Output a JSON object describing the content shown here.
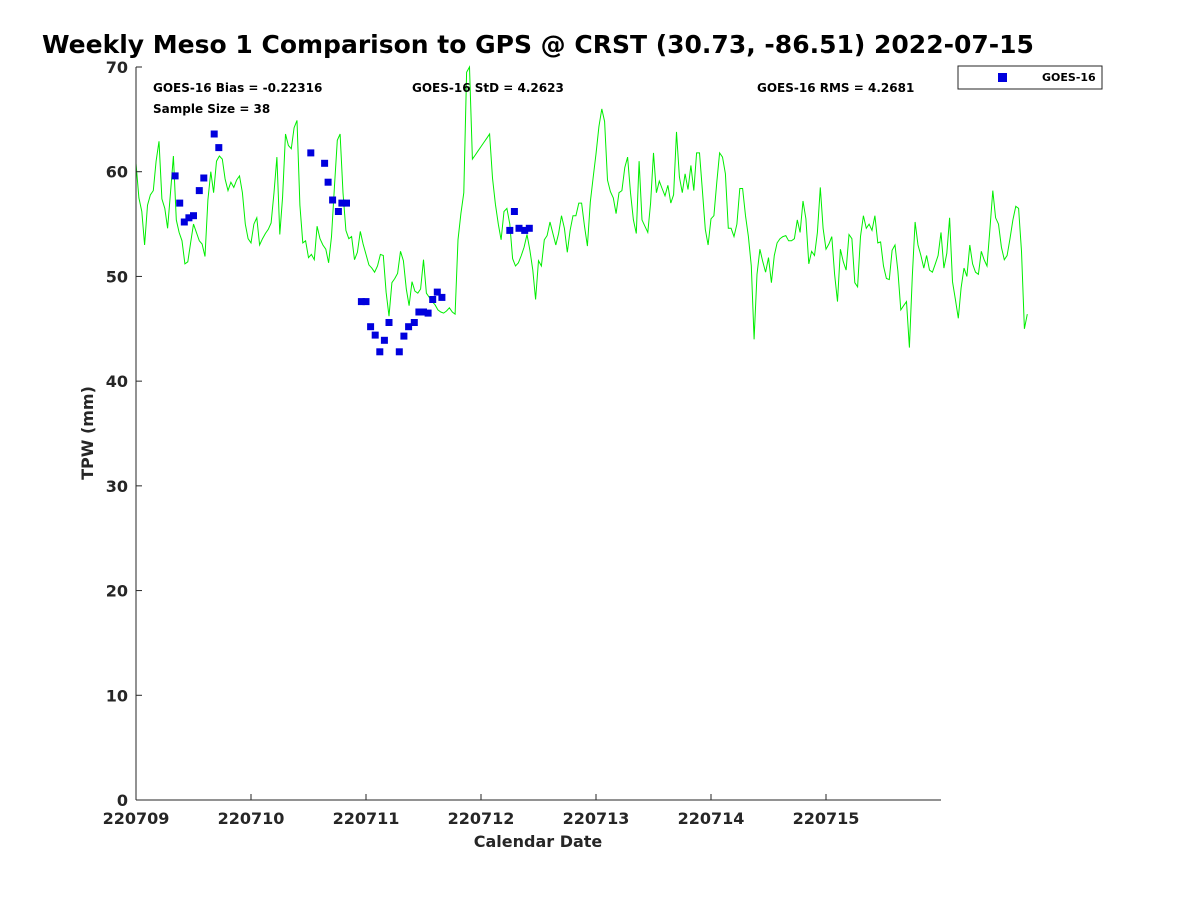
{
  "chart_data": {
    "type": "scatter",
    "title": "Weekly Meso 1 Comparison to GPS @ CRST (30.73, -86.51) 2022-07-15",
    "xlabel": "Calendar Date",
    "ylabel": "TPW (mm)",
    "xlim": [
      0,
      7
    ],
    "ylim": [
      0,
      70
    ],
    "x_ticks": [
      0,
      1,
      2,
      3,
      4,
      5,
      6
    ],
    "x_tick_labels": [
      "220709",
      "220710",
      "220711",
      "220712",
      "220713",
      "220714",
      "220715"
    ],
    "y_ticks": [
      0,
      10,
      20,
      30,
      40,
      50,
      60,
      70
    ],
    "y_tick_labels": [
      "0",
      "10",
      "20",
      "30",
      "40",
      "50",
      "60",
      "70"
    ],
    "grid": false,
    "legend_position": "outside-top-right",
    "stats": {
      "bias": "GOES-16 Bias = -0.22316",
      "std": "GOES-16 StD = 4.2623",
      "rms": "GOES-16 RMS = 4.2681",
      "sample": "Sample Size = 38"
    },
    "series": [
      {
        "name": "GOES-16",
        "kind": "scatter",
        "marker": "square",
        "color": "#0000dd",
        "points": [
          [
            0.34,
            59.6
          ],
          [
            0.38,
            57.0
          ],
          [
            0.42,
            55.2
          ],
          [
            0.46,
            55.6
          ],
          [
            0.5,
            55.8
          ],
          [
            0.55,
            58.2
          ],
          [
            0.59,
            59.4
          ],
          [
            0.68,
            63.6
          ],
          [
            0.72,
            62.3
          ],
          [
            1.52,
            61.8
          ],
          [
            1.64,
            60.8
          ],
          [
            1.67,
            59.0
          ],
          [
            1.71,
            57.3
          ],
          [
            1.76,
            56.2
          ],
          [
            1.79,
            57.0
          ],
          [
            1.83,
            57.0
          ],
          [
            1.96,
            47.6
          ],
          [
            2.0,
            47.6
          ],
          [
            2.04,
            45.2
          ],
          [
            2.08,
            44.4
          ],
          [
            2.12,
            42.8
          ],
          [
            2.16,
            43.9
          ],
          [
            2.2,
            45.6
          ],
          [
            2.29,
            42.8
          ],
          [
            2.33,
            44.3
          ],
          [
            2.37,
            45.2
          ],
          [
            2.42,
            45.6
          ],
          [
            2.46,
            46.6
          ],
          [
            2.5,
            46.6
          ],
          [
            2.54,
            46.5
          ],
          [
            2.58,
            47.8
          ],
          [
            2.62,
            48.5
          ],
          [
            2.66,
            48.0
          ],
          [
            3.25,
            54.4
          ],
          [
            3.29,
            56.2
          ],
          [
            3.33,
            54.6
          ],
          [
            3.38,
            54.4
          ],
          [
            3.42,
            54.6
          ]
        ]
      },
      {
        "kind": "line",
        "color": "#00ee00",
        "x_start": 0,
        "x_step": 0.025,
        "values": [
          60.8,
          57.5,
          56.2,
          53.0,
          56.8,
          57.8,
          58.2,
          61.0,
          62.9,
          57.4,
          56.5,
          54.6,
          58.0,
          61.5,
          55.4,
          54.2,
          53.4,
          51.2,
          51.4,
          53.2,
          55.0,
          54.2,
          53.4,
          53.1,
          51.9,
          57.3,
          60.0,
          58.0,
          61.0,
          61.5,
          61.2,
          59.3,
          58.2,
          59.0,
          58.5,
          59.2,
          59.6,
          58.0,
          55.0,
          53.6,
          53.2,
          55.0,
          55.6,
          53.0,
          53.6,
          54.1,
          54.5,
          55.1,
          58.0,
          61.4,
          54.0,
          57.6,
          63.6,
          62.5,
          62.2,
          64.2,
          64.9,
          56.8,
          53.2,
          53.4,
          51.8,
          52.1,
          51.6,
          54.8,
          53.6,
          53.0,
          52.6,
          51.3,
          53.8,
          58.5,
          63.0,
          63.6,
          58.0,
          54.4,
          53.6,
          53.8,
          51.6,
          52.3,
          54.3,
          53.1,
          52.1,
          51.1,
          50.8,
          50.4,
          51.0,
          52.1,
          52.0,
          48.5,
          46.2,
          49.4,
          49.8,
          50.3,
          52.4,
          51.5,
          48.8,
          47.2,
          49.5,
          48.6,
          48.4,
          48.8,
          51.6,
          48.4,
          48.0,
          47.6,
          47.3,
          46.8,
          46.6,
          46.5,
          46.7,
          47.0,
          46.6,
          46.4,
          53.5,
          56.0,
          58.0,
          69.5,
          70.0,
          61.2,
          61.6,
          62.0,
          62.4,
          62.8,
          63.2,
          63.6,
          59.4,
          56.9,
          55.0,
          53.5,
          56.2,
          56.5,
          55.0,
          51.7,
          51.0,
          51.3,
          52.0,
          52.8,
          54.0,
          52.5,
          50.6,
          47.8,
          51.5,
          51.0,
          53.5,
          53.9,
          55.2,
          54.1,
          53.0,
          54.1,
          55.8,
          54.6,
          52.3,
          54.4,
          55.8,
          55.8,
          57.0,
          57.0,
          54.8,
          52.9,
          57.1,
          59.4,
          61.7,
          64.3,
          66.0,
          64.8,
          59.2,
          58.1,
          57.5,
          56.0,
          58.0,
          58.2,
          60.4,
          61.4,
          58.0,
          55.4,
          54.1,
          61.0,
          55.4,
          54.8,
          54.2,
          57.0,
          61.8,
          58.0,
          59.1,
          58.4,
          57.7,
          58.7,
          57.0,
          57.8,
          63.8,
          59.5,
          58.0,
          59.8,
          58.3,
          60.6,
          58.2,
          61.8,
          61.8,
          58.2,
          54.5,
          53.0,
          55.5,
          55.8,
          59.0,
          61.8,
          61.4,
          59.8,
          54.6,
          54.6,
          53.8,
          55.0,
          58.4,
          58.4,
          55.8,
          53.8,
          51.0,
          44.0,
          50.2,
          52.6,
          51.4,
          50.4,
          51.8,
          49.4,
          52.0,
          53.2,
          53.6,
          53.8,
          53.9,
          53.4,
          53.4,
          53.6,
          55.4,
          54.2,
          57.2,
          55.5,
          51.2,
          52.4,
          52.0,
          54.2,
          58.5,
          54.6,
          52.6,
          53.1,
          53.8,
          50.2,
          47.6,
          52.6,
          51.4,
          50.6,
          54.0,
          53.6,
          49.4,
          49.0,
          53.8,
          55.8,
          54.6,
          55.0,
          54.4,
          55.8,
          53.2,
          53.3,
          51.0,
          49.8,
          49.7,
          52.5,
          53.0,
          50.5,
          46.8,
          47.2,
          47.6,
          43.2,
          50.0,
          55.2,
          53.0,
          52.0,
          50.8,
          52.0,
          50.6,
          50.4,
          51.2,
          52.0,
          54.2,
          50.8,
          52.2,
          55.6,
          49.5,
          47.8,
          46.0,
          48.9,
          50.8,
          50.0,
          53.0,
          51.2,
          50.4,
          50.2,
          52.4,
          51.6,
          51.0,
          54.5,
          58.2,
          55.6,
          55.0,
          52.8,
          51.6,
          52.0,
          53.6,
          55.4,
          56.7,
          56.5,
          52.4,
          45.0,
          46.4
        ]
      }
    ]
  }
}
